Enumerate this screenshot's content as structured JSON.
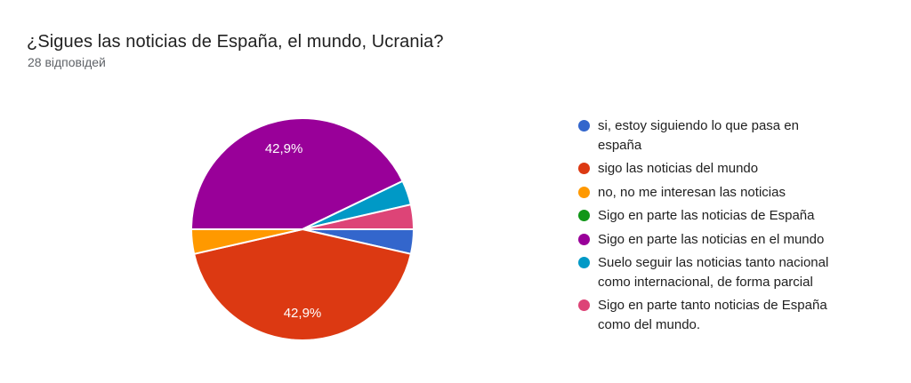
{
  "header": {
    "title": "¿Sigues las noticias de España, el mundo, Ucrania?",
    "subtitle": "28 відповідей",
    "responses_count": 28
  },
  "chart_data": {
    "type": "pie",
    "title": "¿Sigues las noticias de España, el mundo, Ucrania?",
    "subtitle": "28 відповідей",
    "total_responses": 28,
    "start_angle": "3-oclock, clockwise",
    "legend_position": "right",
    "slice_border_color": "#ffffff",
    "slice_label_color": "#ffffff",
    "slices": [
      {
        "label": "si, estoy siguiendo lo que pasa en españa",
        "legend_lines": [
          "si, estoy siguiendo lo que pasa en",
          "españa"
        ],
        "count": 1,
        "pct": 3.6,
        "color": "#3366cc",
        "label_shown": false
      },
      {
        "label": "sigo las noticias del mundo",
        "legend_lines": [
          "sigo las noticias del mundo"
        ],
        "count": 12,
        "pct": 42.9,
        "pct_label": "42,9%",
        "color": "#dc3912",
        "label_shown": true
      },
      {
        "label": "no, no me interesan las noticias",
        "legend_lines": [
          "no, no me interesan las noticias"
        ],
        "count": 1,
        "pct": 3.6,
        "color": "#ff9900",
        "label_shown": false
      },
      {
        "label": "Sigo en parte las noticias de España",
        "legend_lines": [
          "Sigo en parte las noticias de España"
        ],
        "count": 0,
        "pct": 0,
        "color": "#109618",
        "label_shown": false
      },
      {
        "label": "Sigo en parte las noticias en el mundo",
        "legend_lines": [
          "Sigo en parte las noticias en el mundo"
        ],
        "count": 12,
        "pct": 42.9,
        "pct_label": "42,9%",
        "color": "#990099",
        "label_shown": true
      },
      {
        "label": "Suelo seguir las noticias tanto nacional como internacional, de forma parcial",
        "legend_lines": [
          "Suelo seguir las noticias tanto nacional",
          "como internacional, de forma parcial"
        ],
        "count": 1,
        "pct": 3.6,
        "color": "#0099c6",
        "label_shown": false
      },
      {
        "label": "Sigo en parte tanto noticias de España como del mundo.",
        "legend_lines": [
          "Sigo en parte tanto noticias de España",
          "como del mundo."
        ],
        "count": 1,
        "pct": 3.6,
        "color": "#dd4477",
        "label_shown": false
      }
    ]
  }
}
